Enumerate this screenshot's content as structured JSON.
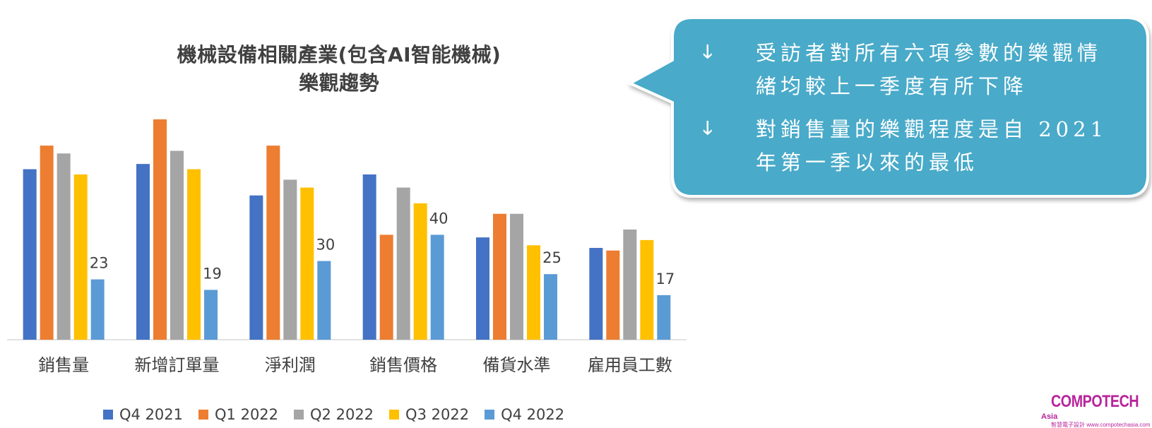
{
  "chart_data": {
    "type": "bar",
    "title": [
      "機械設備相關產業(包含AI智能機械)",
      "樂觀趨勢"
    ],
    "categories": [
      "銷售量",
      "新增訂單量",
      "淨利潤",
      "銷售價格",
      "備貨水準",
      "雇用員工數"
    ],
    "series": [
      {
        "name": "Q4 2021",
        "color": "#4472c4",
        "values": [
          65,
          67,
          55,
          63,
          39,
          35
        ]
      },
      {
        "name": "Q1 2022",
        "color": "#ed7d31",
        "values": [
          74,
          84,
          74,
          40,
          48,
          34
        ]
      },
      {
        "name": "Q2 2022",
        "color": "#a5a5a5",
        "values": [
          71,
          72,
          61,
          58,
          48,
          42
        ]
      },
      {
        "name": "Q3 2022",
        "color": "#ffc000",
        "values": [
          63,
          65,
          58,
          52,
          36,
          38
        ]
      },
      {
        "name": "Q4 2022",
        "color": "#5b9bd5",
        "values": [
          23,
          19,
          30,
          40,
          25,
          17
        ]
      }
    ],
    "data_labels": [
      "23",
      "19",
      "30",
      "40",
      "25",
      "17"
    ],
    "ylim": [
      0,
      90
    ],
    "grid": false,
    "legend": "bottom"
  },
  "callout": {
    "bullets": [
      {
        "icon": "down-arrow-icon",
        "text": "受訪者對所有六項參數的樂觀情緒均較上一季度有所下降"
      },
      {
        "icon": "down-arrow-icon",
        "text": "對銷售量的樂觀程度是自 2021 年第一季以來的最低"
      }
    ],
    "fill": "#4aaac9"
  },
  "brand": {
    "name": "COMPOTECH",
    "suffix": "Asia",
    "tagline": "智慧電子設計 www.compotechasia.com",
    "color": "#b9239b"
  }
}
